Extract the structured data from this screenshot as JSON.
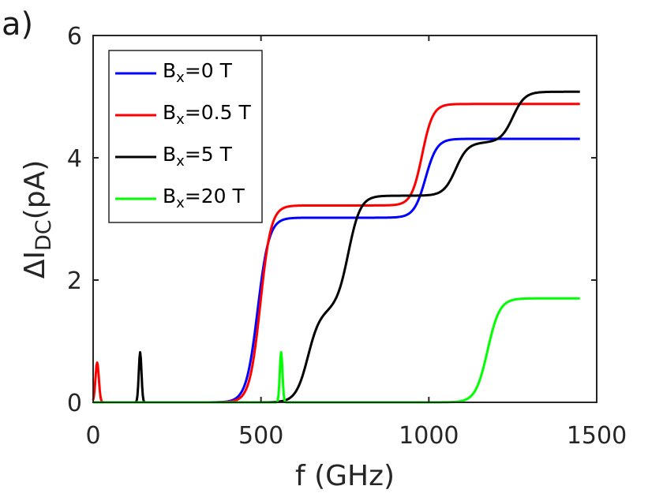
{
  "panel_label": "a)",
  "chart_data": {
    "type": "line",
    "title": "",
    "xlabel": "f (GHz)",
    "ylabel": {
      "main": "ΔI",
      "subscript": "DC",
      "unit": "(pA)"
    },
    "xlim": [
      0,
      1500
    ],
    "ylim": [
      0,
      6
    ],
    "xticks": [
      0,
      500,
      1000,
      1500
    ],
    "yticks": [
      0,
      2,
      4,
      6
    ],
    "grid": false,
    "legend_position": "top-left",
    "series": [
      {
        "name": "Bx=0 T",
        "legend": {
          "base": "B",
          "sub": "x",
          "rest": "=0 T"
        },
        "color": "#0000ff",
        "components": [
          {
            "kind": "step",
            "center": 490,
            "height": 3.02,
            "width": 17
          },
          {
            "kind": "step",
            "center": 990,
            "height": 1.29,
            "width": 17
          }
        ]
      },
      {
        "name": "Bx=0.5 T",
        "legend": {
          "base": "B",
          "sub": "x",
          "rest": "=0.5 T"
        },
        "color": "#ff0000",
        "components": [
          {
            "kind": "peak",
            "center": 12,
            "height": 0.65,
            "width": 5
          },
          {
            "kind": "step",
            "center": 498,
            "height": 3.22,
            "width": 16
          },
          {
            "kind": "step",
            "center": 980,
            "height": 1.66,
            "width": 16
          }
        ]
      },
      {
        "name": "Bx=5 T",
        "legend": {
          "base": "B",
          "sub": "x",
          "rest": "=5 T"
        },
        "color": "#000000",
        "components": [
          {
            "kind": "peak",
            "center": 140,
            "height": 0.82,
            "width": 4
          },
          {
            "kind": "step",
            "center": 640,
            "height": 1.5,
            "width": 18
          },
          {
            "kind": "step",
            "center": 760,
            "height": 1.88,
            "width": 18
          },
          {
            "kind": "step",
            "center": 1080,
            "height": 0.87,
            "width": 18
          },
          {
            "kind": "step",
            "center": 1250,
            "height": 0.83,
            "width": 18
          }
        ]
      },
      {
        "name": "Bx=20 T",
        "legend": {
          "base": "B",
          "sub": "x",
          "rest": "=20 T"
        },
        "color": "#00ff00",
        "components": [
          {
            "kind": "peak",
            "center": 560,
            "height": 0.82,
            "width": 4
          },
          {
            "kind": "step",
            "center": 1175,
            "height": 1.7,
            "width": 18
          }
        ]
      }
    ],
    "x_sampling": {
      "start": 0,
      "end": 1450,
      "step": 2
    }
  }
}
